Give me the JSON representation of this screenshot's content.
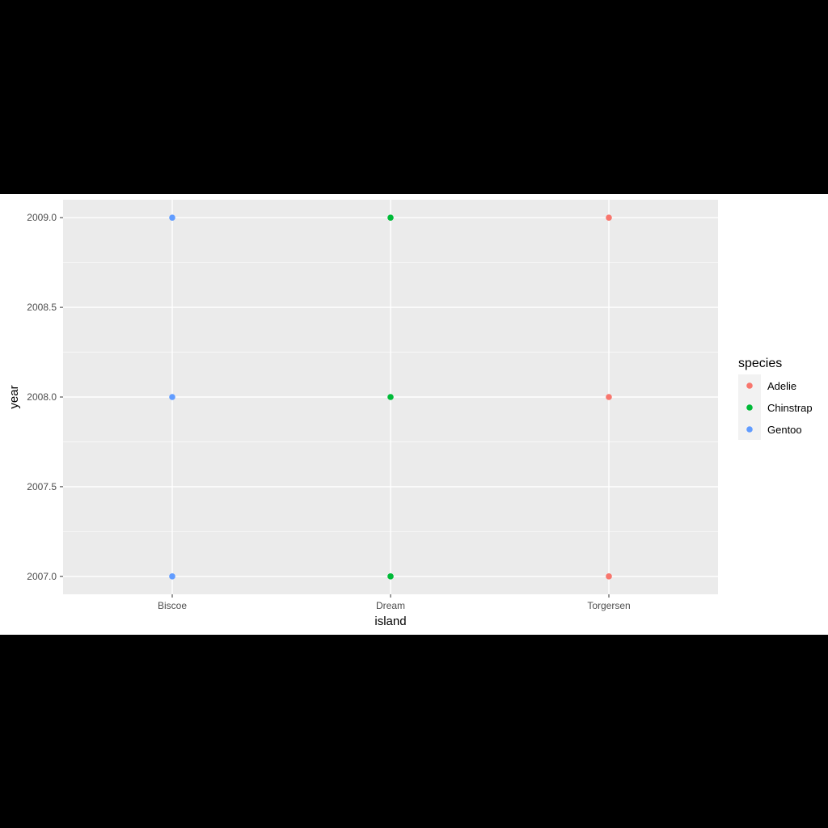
{
  "chart_data": {
    "type": "scatter",
    "xlabel": "island",
    "ylabel": "year",
    "categories": [
      "Biscoe",
      "Dream",
      "Torgersen"
    ],
    "ylim": [
      2006.9,
      2009.1
    ],
    "yticks": [
      "2007.0",
      "2007.5",
      "2008.0",
      "2008.5",
      "2009.0"
    ],
    "grid": true,
    "legend": {
      "title": "species",
      "placement": "right",
      "entries": [
        "Adelie",
        "Chinstrap",
        "Gentoo"
      ]
    },
    "series": [
      {
        "name": "Adelie",
        "color": "#F8766D",
        "points": [
          {
            "x": "Torgersen",
            "y": 2007
          },
          {
            "x": "Torgersen",
            "y": 2008
          },
          {
            "x": "Torgersen",
            "y": 2009
          }
        ]
      },
      {
        "name": "Chinstrap",
        "color": "#00BA38",
        "points": [
          {
            "x": "Dream",
            "y": 2007
          },
          {
            "x": "Dream",
            "y": 2008
          },
          {
            "x": "Dream",
            "y": 2009
          }
        ]
      },
      {
        "name": "Gentoo",
        "color": "#619CFF",
        "points": [
          {
            "x": "Biscoe",
            "y": 2007
          },
          {
            "x": "Biscoe",
            "y": 2008
          },
          {
            "x": "Biscoe",
            "y": 2009
          }
        ]
      }
    ],
    "colors": {
      "panel_background": "#EBEBEB",
      "grid": "#FFFFFF"
    }
  }
}
